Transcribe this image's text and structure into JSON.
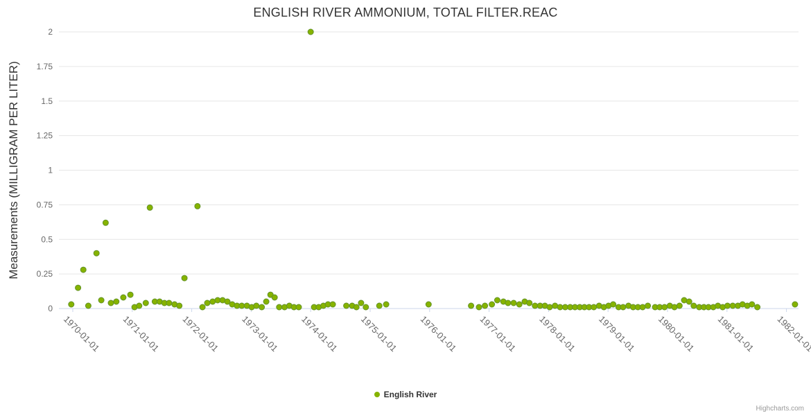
{
  "credits": "Highcharts.com",
  "colors": {
    "point_fill": "#86b300",
    "point_stroke": "#63922a",
    "grid": "#e6e6e6",
    "axis_line": "#ccd6eb",
    "tick_text": "#666666",
    "title_text": "#333333",
    "background": "#ffffff"
  },
  "chart_data": {
    "type": "scatter",
    "title": "ENGLISH RIVER AMMONIUM, TOTAL FILTER.REAC",
    "xlabel": "",
    "ylabel": "Measurements (MILLIGRAM PER LITER)",
    "ylim": [
      0,
      2
    ],
    "yticks": [
      0,
      0.25,
      0.5,
      0.75,
      1,
      1.25,
      1.5,
      1.75,
      2
    ],
    "ytick_labels": [
      "0",
      "0.25",
      "0.5",
      "0.75",
      "1",
      "1.25",
      "1.5",
      "1.75",
      "2"
    ],
    "xticks": [
      "1970-01-01",
      "1971-01-01",
      "1972-01-01",
      "1973-01-01",
      "1974-01-01",
      "1975-01-01",
      "1976-01-01",
      "1977-01-01",
      "1978-01-01",
      "1979-01-01",
      "1980-01-01",
      "1981-01-01",
      "1982-01-01"
    ],
    "xlim_years": [
      1969.767,
      1982.203
    ],
    "grid": "horizontal-only",
    "legend_position": "bottom-center",
    "series": [
      {
        "name": "English River",
        "color": "#86b300",
        "points": [
          [
            "1969-12-22",
            0.03
          ],
          [
            "1970-02-03",
            0.15
          ],
          [
            "1970-03-05",
            0.28
          ],
          [
            "1970-04-05",
            0.02
          ],
          [
            "1970-05-25",
            0.4
          ],
          [
            "1970-06-24",
            0.06
          ],
          [
            "1970-07-20",
            0.62
          ],
          [
            "1970-08-22",
            0.04
          ],
          [
            "1970-09-25",
            0.05
          ],
          [
            "1970-11-07",
            0.08
          ],
          [
            "1970-12-20",
            0.1
          ],
          [
            "1971-01-15",
            0.01
          ],
          [
            "1971-02-13",
            0.02
          ],
          [
            "1971-03-23",
            0.04
          ],
          [
            "1971-04-18",
            0.73
          ],
          [
            "1971-05-18",
            0.05
          ],
          [
            "1971-06-17",
            0.05
          ],
          [
            "1971-07-16",
            0.04
          ],
          [
            "1971-08-14",
            0.04
          ],
          [
            "1971-09-17",
            0.03
          ],
          [
            "1971-10-16",
            0.02
          ],
          [
            "1971-11-17",
            0.22
          ],
          [
            "1972-02-06",
            0.74
          ],
          [
            "1972-03-06",
            0.01
          ],
          [
            "1972-04-05",
            0.04
          ],
          [
            "1972-05-08",
            0.05
          ],
          [
            "1972-06-08",
            0.06
          ],
          [
            "1972-07-08",
            0.06
          ],
          [
            "1972-08-07",
            0.05
          ],
          [
            "1972-09-06",
            0.03
          ],
          [
            "1972-10-05",
            0.02
          ],
          [
            "1972-11-04",
            0.02
          ],
          [
            "1972-12-05",
            0.02
          ],
          [
            "1973-01-04",
            0.01
          ],
          [
            "1973-02-02",
            0.02
          ],
          [
            "1973-03-05",
            0.01
          ],
          [
            "1973-04-02",
            0.05
          ],
          [
            "1973-04-28",
            0.1
          ],
          [
            "1973-05-23",
            0.08
          ],
          [
            "1973-06-21",
            0.01
          ],
          [
            "1973-07-23",
            0.01
          ],
          [
            "1973-08-22",
            0.02
          ],
          [
            "1973-09-20",
            0.01
          ],
          [
            "1973-10-19",
            0.01
          ],
          [
            "1974-01-01",
            2.0
          ],
          [
            "1974-01-22",
            0.01
          ],
          [
            "1974-02-20",
            0.01
          ],
          [
            "1974-03-18",
            0.02
          ],
          [
            "1974-04-16",
            0.03
          ],
          [
            "1974-05-15",
            0.03
          ],
          [
            "1974-08-07",
            0.02
          ],
          [
            "1974-09-12",
            0.02
          ],
          [
            "1974-10-08",
            0.01
          ],
          [
            "1974-11-06",
            0.04
          ],
          [
            "1974-12-05",
            0.01
          ],
          [
            "1975-02-27",
            0.02
          ],
          [
            "1975-04-08",
            0.03
          ],
          [
            "1975-12-25",
            0.03
          ],
          [
            "1976-09-12",
            0.02
          ],
          [
            "1976-10-30",
            0.01
          ],
          [
            "1976-12-06",
            0.02
          ],
          [
            "1977-01-18",
            0.03
          ],
          [
            "1977-02-21",
            0.06
          ],
          [
            "1977-03-28",
            0.05
          ],
          [
            "1977-04-26",
            0.04
          ],
          [
            "1977-05-30",
            0.04
          ],
          [
            "1977-07-04",
            0.03
          ],
          [
            "1977-08-07",
            0.05
          ],
          [
            "1977-09-05",
            0.04
          ],
          [
            "1977-10-09",
            0.02
          ],
          [
            "1977-11-10",
            0.02
          ],
          [
            "1977-12-09",
            0.02
          ],
          [
            "1978-01-08",
            0.01
          ],
          [
            "1978-02-10",
            0.02
          ],
          [
            "1978-03-11",
            0.01
          ],
          [
            "1978-04-12",
            0.01
          ],
          [
            "1978-05-12",
            0.01
          ],
          [
            "1978-06-11",
            0.01
          ],
          [
            "1978-07-10",
            0.01
          ],
          [
            "1978-08-08",
            0.01
          ],
          [
            "1978-09-06",
            0.01
          ],
          [
            "1978-10-05",
            0.01
          ],
          [
            "1978-11-07",
            0.02
          ],
          [
            "1978-12-06",
            0.01
          ],
          [
            "1979-01-04",
            0.02
          ],
          [
            "1979-02-02",
            0.03
          ],
          [
            "1979-03-05",
            0.01
          ],
          [
            "1979-04-02",
            0.01
          ],
          [
            "1979-05-05",
            0.02
          ],
          [
            "1979-06-03",
            0.01
          ],
          [
            "1979-07-02",
            0.01
          ],
          [
            "1979-07-31",
            0.01
          ],
          [
            "1979-09-02",
            0.02
          ],
          [
            "1979-10-16",
            0.01
          ],
          [
            "1979-11-14",
            0.01
          ],
          [
            "1979-12-13",
            0.01
          ],
          [
            "1980-01-15",
            0.02
          ],
          [
            "1980-02-13",
            0.01
          ],
          [
            "1980-03-14",
            0.02
          ],
          [
            "1980-04-12",
            0.06
          ],
          [
            "1980-05-12",
            0.05
          ],
          [
            "1980-06-10",
            0.02
          ],
          [
            "1980-07-13",
            0.01
          ],
          [
            "1980-08-11",
            0.01
          ],
          [
            "1980-09-09",
            0.01
          ],
          [
            "1980-10-08",
            0.01
          ],
          [
            "1980-11-06",
            0.02
          ],
          [
            "1980-12-05",
            0.01
          ],
          [
            "1981-01-04",
            0.02
          ],
          [
            "1981-02-06",
            0.02
          ],
          [
            "1981-03-07",
            0.02
          ],
          [
            "1981-04-05",
            0.03
          ],
          [
            "1981-05-04",
            0.02
          ],
          [
            "1981-06-02",
            0.03
          ],
          [
            "1981-07-05",
            0.01
          ],
          [
            "1982-02-23",
            0.03
          ]
        ]
      }
    ]
  }
}
